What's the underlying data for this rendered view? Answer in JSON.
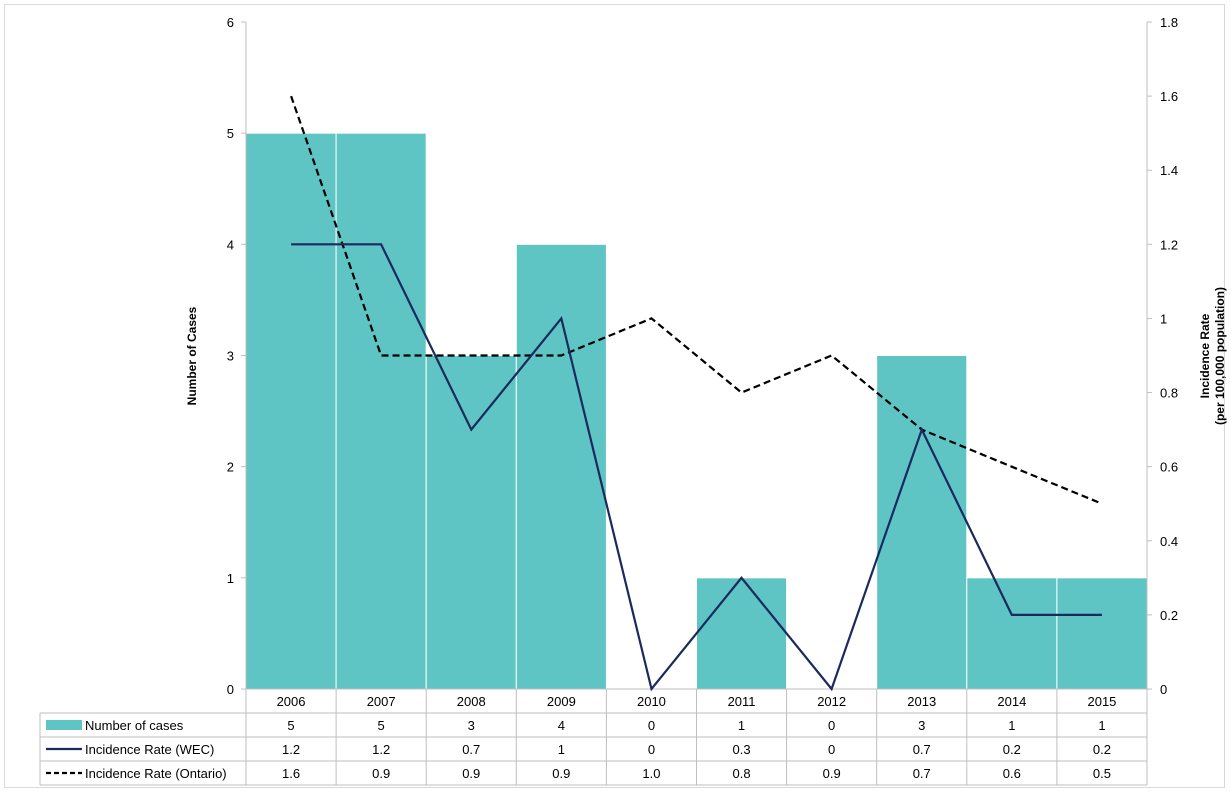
{
  "chart_data": {
    "type": "bar",
    "categories": [
      "2006",
      "2007",
      "2008",
      "2009",
      "2010",
      "2011",
      "2012",
      "2013",
      "2014",
      "2015"
    ],
    "series": [
      {
        "name": "Number of cases",
        "type": "bar",
        "axis": "left",
        "values": [
          5,
          5,
          3,
          4,
          0,
          1,
          0,
          3,
          1,
          1
        ],
        "labels": [
          "5",
          "5",
          "3",
          "4",
          "0",
          "1",
          "0",
          "3",
          "1",
          "1"
        ]
      },
      {
        "name": "Incidence Rate (WEC)",
        "type": "line",
        "style": "solid",
        "axis": "right",
        "values": [
          1.2,
          1.2,
          0.7,
          1,
          0,
          0.3,
          0,
          0.7,
          0.2,
          0.2
        ],
        "labels": [
          "1.2",
          "1.2",
          "0.7",
          "1",
          "0",
          "0.3",
          "0",
          "0.7",
          "0.2",
          "0.2"
        ]
      },
      {
        "name": "Incidence Rate (Ontario)",
        "type": "line",
        "style": "dashed",
        "axis": "right",
        "values": [
          1.6,
          0.9,
          0.9,
          0.9,
          1.0,
          0.8,
          0.9,
          0.7,
          0.6,
          0.5
        ],
        "labels": [
          "1.6",
          "0.9",
          "0.9",
          "0.9",
          "1.0",
          "0.8",
          "0.9",
          "0.7",
          "0.6",
          "0.5"
        ]
      }
    ],
    "ylabel": "Number of Cases",
    "y2label": [
      "Incidence Rate",
      "(per 100,000 population)"
    ],
    "ylim": [
      0,
      6
    ],
    "y2lim": [
      0,
      1.8
    ],
    "yticks": [
      "0",
      "1",
      "2",
      "3",
      "4",
      "5",
      "6"
    ],
    "y2ticks": [
      "0",
      "0.2",
      "0.4",
      "0.6",
      "0.8",
      "1",
      "1.2",
      "1.4",
      "1.6",
      "1.8"
    ],
    "grid": false,
    "legend": "data-table",
    "colors": {
      "bar": "#5ec4c4",
      "wec": "#1b2a5c",
      "ontario": "#000000"
    }
  }
}
